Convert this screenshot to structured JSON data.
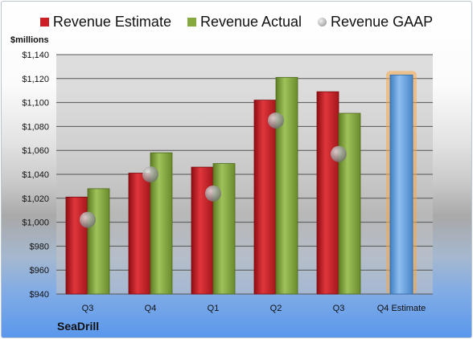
{
  "legend": {
    "estimate": "Revenue Estimate",
    "actual": "Revenue Actual",
    "gaap": "Revenue GAAP"
  },
  "colors": {
    "estimate": "#cc1f26",
    "actual": "#86a93f",
    "gaap": "#9a9a9a",
    "forecast": "#5b9bd5",
    "forecast_glow": "#f6a84a"
  },
  "chart_data": {
    "type": "bar",
    "title": "",
    "unit_label": "$millions",
    "company": "SeaDrill",
    "categories": [
      "Q3",
      "Q4",
      "Q1",
      "Q2",
      "Q3",
      "Q4 Estimate"
    ],
    "series": [
      {
        "name": "Revenue Estimate",
        "values": [
          1021,
          1041,
          1046,
          1102,
          1109,
          null
        ]
      },
      {
        "name": "Revenue Actual",
        "values": [
          1028,
          1058,
          1049,
          1121,
          1091,
          null
        ]
      },
      {
        "name": "Revenue GAAP",
        "values": [
          1002,
          1040,
          1024,
          1085,
          1057,
          null
        ]
      }
    ],
    "forecast": {
      "category": "Q4 Estimate",
      "value": 1123
    },
    "ylim": [
      940,
      1140
    ],
    "yticks": [
      940,
      960,
      980,
      1000,
      1020,
      1040,
      1060,
      1080,
      1100,
      1120,
      1140
    ],
    "grid": true,
    "legend_position": "top"
  }
}
